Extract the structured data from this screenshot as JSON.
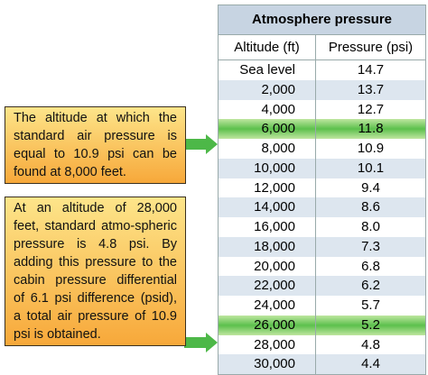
{
  "table": {
    "title": "Atmosphere pressure",
    "columns": [
      "Altitude (ft)",
      "Pressure (psi)"
    ],
    "rows": [
      [
        "Sea level",
        "14.7"
      ],
      [
        "2,000",
        "13.7"
      ],
      [
        "4,000",
        "12.7"
      ],
      [
        "6,000",
        "11.8"
      ],
      [
        "8,000",
        "10.9"
      ],
      [
        "10,000",
        "10.1"
      ],
      [
        "12,000",
        "9.4"
      ],
      [
        "14,000",
        "8.6"
      ],
      [
        "16,000",
        "8.0"
      ],
      [
        "18,000",
        "7.3"
      ],
      [
        "20,000",
        "6.8"
      ],
      [
        "22,000",
        "6.2"
      ],
      [
        "24,000",
        "5.7"
      ],
      [
        "26,000",
        "5.2"
      ],
      [
        "28,000",
        "4.8"
      ],
      [
        "30,000",
        "4.4"
      ]
    ]
  },
  "notes": [
    "The altitude at which the standard air pressure is equal to 10.9 psi can be found at 8,000 feet.",
    "At an altitude of 28,000 feet, standard atmo-spheric pressure is 4.8 psi. By adding this pressure to the cabin pressure differential of 6.1 psi difference (psid), a total air pressure of 10.9 psi is obtained."
  ]
}
